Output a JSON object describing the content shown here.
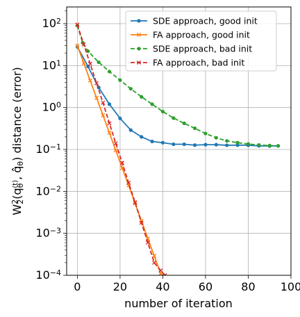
{
  "chart_data": {
    "type": "line",
    "title": "",
    "xlabel": "number of iteration",
    "ylabel": "W22(qθ(t), q̂θ) distance (error)",
    "ylabel_parts": {
      "base": "W",
      "sup": "2",
      "sub": "2",
      "open": "(",
      "q1": "q",
      "q1_sub": "θ",
      "q1_sup": "(t)",
      "comma": ", ",
      "q2": "q̂",
      "q2_sub": "θ",
      "close": ")",
      "suffix": " distance (error)"
    },
    "xlim": [
      -5,
      100
    ],
    "ylim": [
      0.0001,
      250
    ],
    "yscale": "log",
    "grid": true,
    "legend_position": "upper-right",
    "x_ticks": [
      {
        "value": 0,
        "label": "0"
      },
      {
        "value": 20,
        "label": "20"
      },
      {
        "value": 40,
        "label": "40"
      },
      {
        "value": 60,
        "label": "60"
      },
      {
        "value": 80,
        "label": "80"
      },
      {
        "value": 100,
        "label": "100"
      }
    ],
    "y_ticks": [
      {
        "value": 0.0001,
        "base": "10",
        "exp": "−4"
      },
      {
        "value": 0.001,
        "base": "10",
        "exp": "−3"
      },
      {
        "value": 0.01,
        "base": "10",
        "exp": "−2"
      },
      {
        "value": 0.1,
        "base": "10",
        "exp": "−1"
      },
      {
        "value": 1,
        "base": "10",
        "exp": "0"
      },
      {
        "value": 10,
        "base": "10",
        "exp": "1"
      },
      {
        "value": 100,
        "base": "10",
        "exp": "2"
      }
    ],
    "series": [
      {
        "name": "SDE approach, good init",
        "color": "#1f77b4",
        "line_style": "solid",
        "marker": "dot",
        "x": [
          0,
          5,
          10,
          15,
          20,
          25,
          30,
          35,
          40,
          45,
          50,
          55,
          60,
          65,
          70,
          75,
          80,
          85,
          90,
          94
        ],
        "y": [
          28,
          9.5,
          3.0,
          1.2,
          0.55,
          0.29,
          0.2,
          0.155,
          0.145,
          0.133,
          0.133,
          0.127,
          0.13,
          0.13,
          0.126,
          0.127,
          0.126,
          0.122,
          0.121,
          0.122
        ]
      },
      {
        "name": "FA approach, good init",
        "color": "#ff7f0e",
        "line_style": "solid",
        "marker": "x",
        "x": [
          0,
          3,
          6,
          9,
          12,
          15,
          18,
          21,
          24,
          27,
          30,
          33,
          36,
          39,
          40
        ],
        "y": [
          30,
          11.5,
          4.4,
          1.7,
          0.65,
          0.25,
          0.095,
          0.036,
          0.014,
          0.0052,
          0.002,
          0.00075,
          0.00029,
          0.00011,
          0.0001
        ]
      },
      {
        "name": "SDE approach, bad init",
        "color": "#2ca02c",
        "line_style": "dashed",
        "marker": "dot",
        "x": [
          0,
          2.5,
          5,
          10,
          15,
          20,
          25,
          30,
          35,
          40,
          45,
          50,
          55,
          60,
          65,
          70,
          75,
          80,
          85,
          90,
          94
        ],
        "y": [
          90,
          35,
          22,
          12,
          7.2,
          4.5,
          2.8,
          1.8,
          1.2,
          0.8,
          0.56,
          0.42,
          0.32,
          0.24,
          0.19,
          0.16,
          0.145,
          0.135,
          0.128,
          0.124,
          0.122
        ]
      },
      {
        "name": "FA approach, bad init",
        "color": "#d62728",
        "line_style": "dashed",
        "marker": "x",
        "x": [
          0,
          3,
          6,
          9,
          12,
          15,
          18,
          21,
          24,
          27,
          30,
          33,
          36,
          39,
          41
        ],
        "y": [
          95,
          32,
          11,
          3.8,
          1.3,
          0.42,
          0.14,
          0.048,
          0.016,
          0.0055,
          0.0018,
          0.0006,
          0.0002,
          0.00013,
          0.0001
        ]
      }
    ]
  }
}
